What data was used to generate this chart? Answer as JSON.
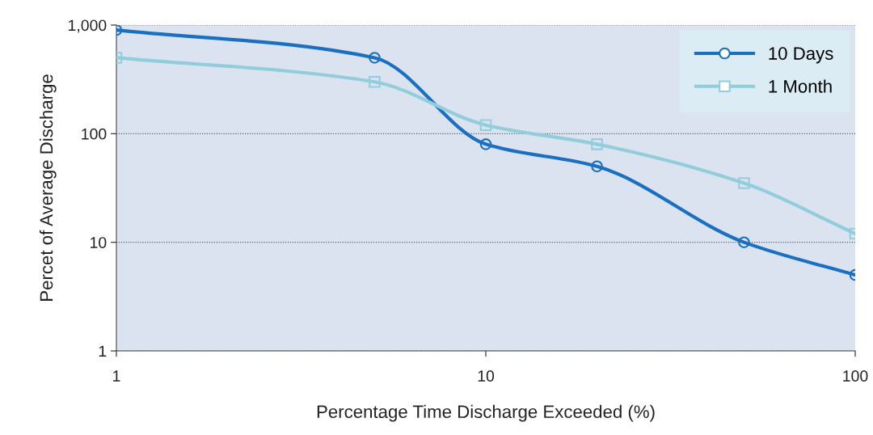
{
  "chart_data": {
    "type": "line",
    "xlabel": "Percentage Time Discharge Exceeded (%)",
    "ylabel": "Percet of Average Discharge",
    "x": [
      1,
      5,
      10,
      20,
      50,
      100
    ],
    "series": [
      {
        "name": "10 Days",
        "color": "#1a6fc0",
        "marker": "circle",
        "values": [
          900,
          500,
          80,
          50,
          10,
          5
        ]
      },
      {
        "name": "1 Month",
        "color": "#92cddc",
        "marker": "square",
        "values": [
          500,
          300,
          120,
          80,
          35,
          12
        ]
      }
    ],
    "log": "xy",
    "xlim": [
      1,
      100
    ],
    "ylim": [
      1,
      1000
    ],
    "xticks": [
      1,
      10,
      100
    ],
    "yticks": [
      1,
      10,
      100,
      {
        "value": 1000,
        "label": "1,000"
      }
    ],
    "grid": "y",
    "legend": "top right",
    "line_style": "solid"
  }
}
